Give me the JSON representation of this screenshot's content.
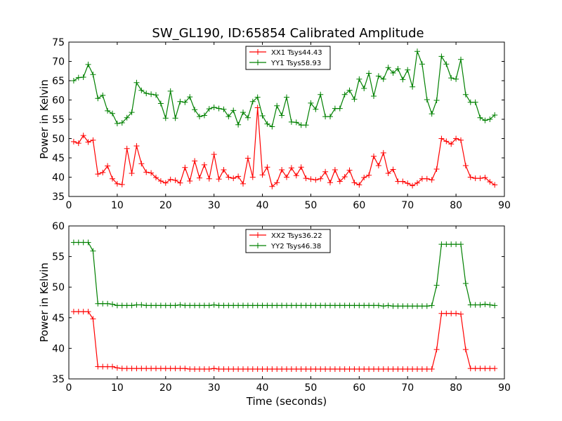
{
  "title": "SW_GL190, ID:65854 Calibrated Amplitude",
  "chart_data": [
    {
      "type": "line",
      "xlabel": "",
      "ylabel": "Power in Kelvin",
      "xlim": [
        0,
        90
      ],
      "ylim": [
        35,
        75
      ],
      "xticks": [
        0,
        10,
        20,
        30,
        40,
        50,
        60,
        70,
        80,
        90
      ],
      "yticks": [
        35,
        40,
        45,
        50,
        55,
        60,
        65,
        70,
        75
      ],
      "grid": false,
      "legend_position": "top-center",
      "x": [
        1,
        2,
        3,
        4,
        5,
        6,
        7,
        8,
        9,
        10,
        11,
        12,
        13,
        14,
        15,
        16,
        17,
        18,
        19,
        20,
        21,
        22,
        23,
        24,
        25,
        26,
        27,
        28,
        29,
        30,
        31,
        32,
        33,
        34,
        35,
        36,
        37,
        38,
        39,
        40,
        41,
        42,
        43,
        44,
        45,
        46,
        47,
        48,
        49,
        50,
        51,
        52,
        53,
        54,
        55,
        56,
        57,
        58,
        59,
        60,
        61,
        62,
        63,
        64,
        65,
        66,
        67,
        68,
        69,
        70,
        71,
        72,
        73,
        74,
        75,
        76,
        77,
        78,
        79,
        80,
        81,
        82,
        83,
        84,
        85,
        86,
        87,
        88
      ],
      "series": [
        {
          "name": "XX1 Tsys44.43",
          "color": "#ff0000",
          "values": [
            49.2,
            48.8,
            50.8,
            49.1,
            49.6,
            40.8,
            41.2,
            42.9,
            39.6,
            38.3,
            38.1,
            47.4,
            41.0,
            48.1,
            43.5,
            41.3,
            41.1,
            39.9,
            39.0,
            38.5,
            39.4,
            39.2,
            38.5,
            42.5,
            39.0,
            44.2,
            39.8,
            43.2,
            39.6,
            45.9,
            39.5,
            41.9,
            40.0,
            39.7,
            40.2,
            38.3,
            44.9,
            40.0,
            58.0,
            40.6,
            42.6,
            37.6,
            38.6,
            41.9,
            40.0,
            42.4,
            40.4,
            42.6,
            39.7,
            39.5,
            39.3,
            39.6,
            41.4,
            38.6,
            41.9,
            38.9,
            40.1,
            41.8,
            38.6,
            38.0,
            39.9,
            40.5,
            45.4,
            43.0,
            46.3,
            41.0,
            42.0,
            38.9,
            38.9,
            38.4,
            37.8,
            38.5,
            39.6,
            39.6,
            39.3,
            42.1,
            50.0,
            49.3,
            48.6,
            50.0,
            49.6,
            43.0,
            40.0,
            39.7,
            39.7,
            39.9,
            38.8,
            38.0
          ]
        },
        {
          "name": "YY1 Tsys58.93",
          "color": "#008000",
          "values": [
            65.0,
            65.8,
            65.9,
            69.2,
            66.6,
            60.4,
            61.2,
            57.2,
            56.5,
            53.9,
            54.1,
            55.4,
            56.8,
            64.5,
            62.5,
            61.7,
            61.5,
            61.3,
            59.1,
            55.3,
            62.3,
            55.3,
            59.6,
            59.4,
            60.8,
            57.5,
            55.7,
            56.0,
            57.7,
            58.1,
            57.8,
            57.6,
            55.7,
            57.3,
            53.6,
            56.8,
            55.4,
            59.6,
            60.7,
            55.9,
            53.8,
            53.1,
            58.5,
            56.0,
            60.7,
            54.3,
            54.2,
            53.5,
            53.5,
            59.2,
            57.6,
            61.4,
            55.7,
            55.7,
            57.8,
            57.8,
            61.4,
            62.5,
            60.2,
            65.4,
            63.0,
            66.9,
            61.0,
            66.2,
            65.4,
            68.4,
            67.0,
            68.1,
            65.3,
            67.8,
            63.4,
            72.6,
            69.3,
            60.1,
            56.4,
            59.9,
            71.3,
            69.3,
            65.7,
            65.4,
            70.5,
            61.4,
            59.4,
            59.4,
            55.4,
            54.7,
            55.0,
            56.1
          ]
        }
      ]
    },
    {
      "type": "line",
      "xlabel": "Time (seconds)",
      "ylabel": "Power in Kelvin",
      "xlim": [
        0,
        90
      ],
      "ylim": [
        35,
        60
      ],
      "xticks": [
        0,
        10,
        20,
        30,
        40,
        50,
        60,
        70,
        80,
        90
      ],
      "yticks": [
        35,
        40,
        45,
        50,
        55,
        60
      ],
      "grid": false,
      "legend_position": "top-center",
      "x": [
        1,
        2,
        3,
        4,
        5,
        6,
        7,
        8,
        9,
        10,
        11,
        12,
        13,
        14,
        15,
        16,
        17,
        18,
        19,
        20,
        21,
        22,
        23,
        24,
        25,
        26,
        27,
        28,
        29,
        30,
        31,
        32,
        33,
        34,
        35,
        36,
        37,
        38,
        39,
        40,
        41,
        42,
        43,
        44,
        45,
        46,
        47,
        48,
        49,
        50,
        51,
        52,
        53,
        54,
        55,
        56,
        57,
        58,
        59,
        60,
        61,
        62,
        63,
        64,
        65,
        66,
        67,
        68,
        69,
        70,
        71,
        72,
        73,
        74,
        75,
        76,
        77,
        78,
        79,
        80,
        81,
        82,
        83,
        84,
        85,
        86,
        87,
        88
      ],
      "series": [
        {
          "name": "XX2 Tsys36.22",
          "color": "#ff0000",
          "values": [
            46.0,
            46.0,
            46.0,
            46.0,
            44.8,
            37.0,
            37.0,
            37.0,
            37.0,
            36.8,
            36.7,
            36.7,
            36.7,
            36.7,
            36.7,
            36.7,
            36.7,
            36.7,
            36.7,
            36.7,
            36.7,
            36.7,
            36.7,
            36.7,
            36.6,
            36.6,
            36.6,
            36.6,
            36.6,
            36.7,
            36.6,
            36.6,
            36.6,
            36.6,
            36.6,
            36.6,
            36.6,
            36.6,
            36.6,
            36.6,
            36.6,
            36.6,
            36.6,
            36.6,
            36.6,
            36.6,
            36.6,
            36.6,
            36.6,
            36.6,
            36.6,
            36.6,
            36.6,
            36.6,
            36.6,
            36.6,
            36.6,
            36.6,
            36.6,
            36.6,
            36.6,
            36.6,
            36.6,
            36.6,
            36.6,
            36.6,
            36.6,
            36.6,
            36.6,
            36.6,
            36.6,
            36.6,
            36.6,
            36.6,
            36.6,
            39.8,
            45.7,
            45.7,
            45.7,
            45.7,
            45.6,
            39.8,
            36.7,
            36.7,
            36.7,
            36.7,
            36.7,
            36.7
          ]
        },
        {
          "name": "YY2 Tsys46.38",
          "color": "#008000",
          "values": [
            57.3,
            57.3,
            57.3,
            57.3,
            55.9,
            47.3,
            47.3,
            47.3,
            47.2,
            47.0,
            47.0,
            47.0,
            47.0,
            47.1,
            47.1,
            47.0,
            47.0,
            47.0,
            47.0,
            47.0,
            47.0,
            47.0,
            47.1,
            47.0,
            47.0,
            47.0,
            47.0,
            47.0,
            47.0,
            47.1,
            47.0,
            47.0,
            47.0,
            47.0,
            47.0,
            47.0,
            47.0,
            47.0,
            47.0,
            47.0,
            47.0,
            47.0,
            47.0,
            47.0,
            47.0,
            47.0,
            47.0,
            47.0,
            47.0,
            47.0,
            47.0,
            47.0,
            47.0,
            47.0,
            47.0,
            47.0,
            47.0,
            47.0,
            47.0,
            47.0,
            47.0,
            47.0,
            47.0,
            47.0,
            46.9,
            47.0,
            46.9,
            46.9,
            46.9,
            46.9,
            46.9,
            46.9,
            46.9,
            46.9,
            47.0,
            50.3,
            57.0,
            57.0,
            57.0,
            57.0,
            57.0,
            50.6,
            47.1,
            47.1,
            47.1,
            47.2,
            47.1,
            47.0
          ]
        }
      ]
    }
  ]
}
